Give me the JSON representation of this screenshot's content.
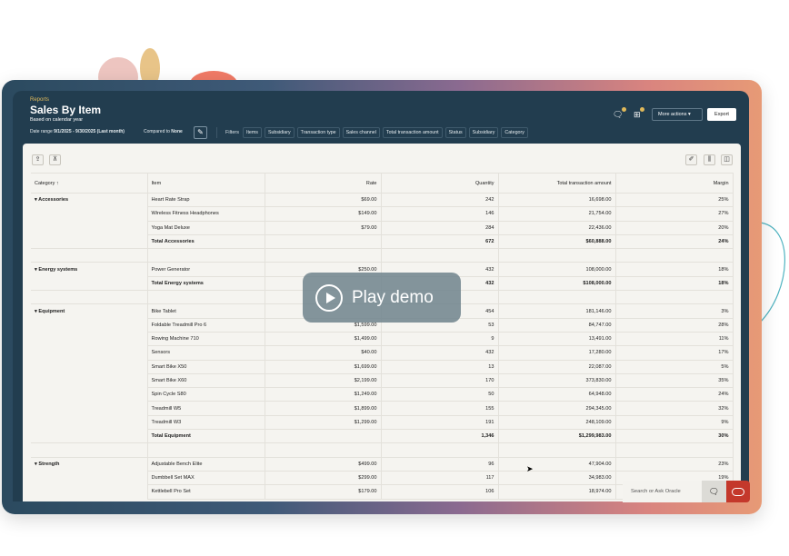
{
  "header": {
    "breadcrumb": "Reports",
    "title": "Sales By Item",
    "subtitle": "Based on calendar year",
    "date_range_label": "Date range",
    "date_range_value": "9/1/2025 - 9/30/2025 (Last month)",
    "compared_label": "Compared to",
    "compared_value": "None",
    "filters_label": "Filters",
    "filters": [
      "Items",
      "Subsidiary",
      "Transaction type",
      "Sales channel",
      "Total transaction amount",
      "Status",
      "Subsidiary",
      "Category"
    ],
    "more_actions": "More actions",
    "export": "Export"
  },
  "table": {
    "columns": [
      "Category",
      "Item",
      "Rate",
      "Quantity",
      "Total transaction amount",
      "Margin"
    ],
    "groups": [
      {
        "category": "Accessories",
        "rows": [
          [
            "Heart Rate Strap",
            "$69.00",
            "242",
            "16,698.00",
            "25%"
          ],
          [
            "Wireless Fitness Headphones",
            "$149.00",
            "146",
            "21,754.00",
            "27%"
          ],
          [
            "Yoga Mat Deluxe",
            "$79.00",
            "284",
            "22,436.00",
            "20%"
          ]
        ],
        "total": [
          "Total Accessories",
          "",
          "672",
          "$60,888.00",
          "24%"
        ]
      },
      {
        "category": "Energy systems",
        "rows": [
          [
            "Power Generator",
            "$250.00",
            "432",
            "108,000.00",
            "18%"
          ]
        ],
        "total": [
          "Total Energy systems",
          "",
          "432",
          "$108,000.00",
          "18%"
        ]
      },
      {
        "category": "Equipment",
        "rows": [
          [
            "Bike Tablet",
            "",
            "454",
            "181,146.00",
            "3%"
          ],
          [
            "Foldable Treadmill Pro 6",
            "$1,599.00",
            "53",
            "84,747.00",
            "28%"
          ],
          [
            "Rowing Machine 710",
            "$1,499.00",
            "9",
            "13,491.00",
            "11%"
          ],
          [
            "Sensors",
            "$40.00",
            "432",
            "17,280.00",
            "17%"
          ],
          [
            "Smart Bike X50",
            "$1,699.00",
            "13",
            "22,087.00",
            "5%"
          ],
          [
            "Smart Bike X60",
            "$2,199.00",
            "170",
            "373,830.00",
            "35%"
          ],
          [
            "Spin Cycle S80",
            "$1,249.00",
            "50",
            "64,948.00",
            "24%"
          ],
          [
            "Treadmill W5",
            "$1,899.00",
            "155",
            "294,345.00",
            "32%"
          ],
          [
            "Treadmill W3",
            "$1,299.00",
            "191",
            "248,109.00",
            "9%"
          ]
        ],
        "total": [
          "Total Equipment",
          "",
          "1,346",
          "$1,299,983.00",
          "30%"
        ]
      },
      {
        "category": "Strength",
        "rows": [
          [
            "Adjustable Bench Elite",
            "$499.00",
            "96",
            "47,904.00",
            "23%"
          ],
          [
            "Dumbbell Set MAX",
            "$299.00",
            "117",
            "34,983.00",
            "19%"
          ],
          [
            "Kettlebell Pro Set",
            "$179.00",
            "106",
            "18,974.00",
            ""
          ]
        ]
      }
    ]
  },
  "play_demo": "Play demo",
  "ask_oracle": {
    "placeholder": "Search or Ask Oracle"
  },
  "colors": {
    "header": "#223d4f",
    "accent": "#c4382b",
    "badge": "#e0b95a"
  }
}
